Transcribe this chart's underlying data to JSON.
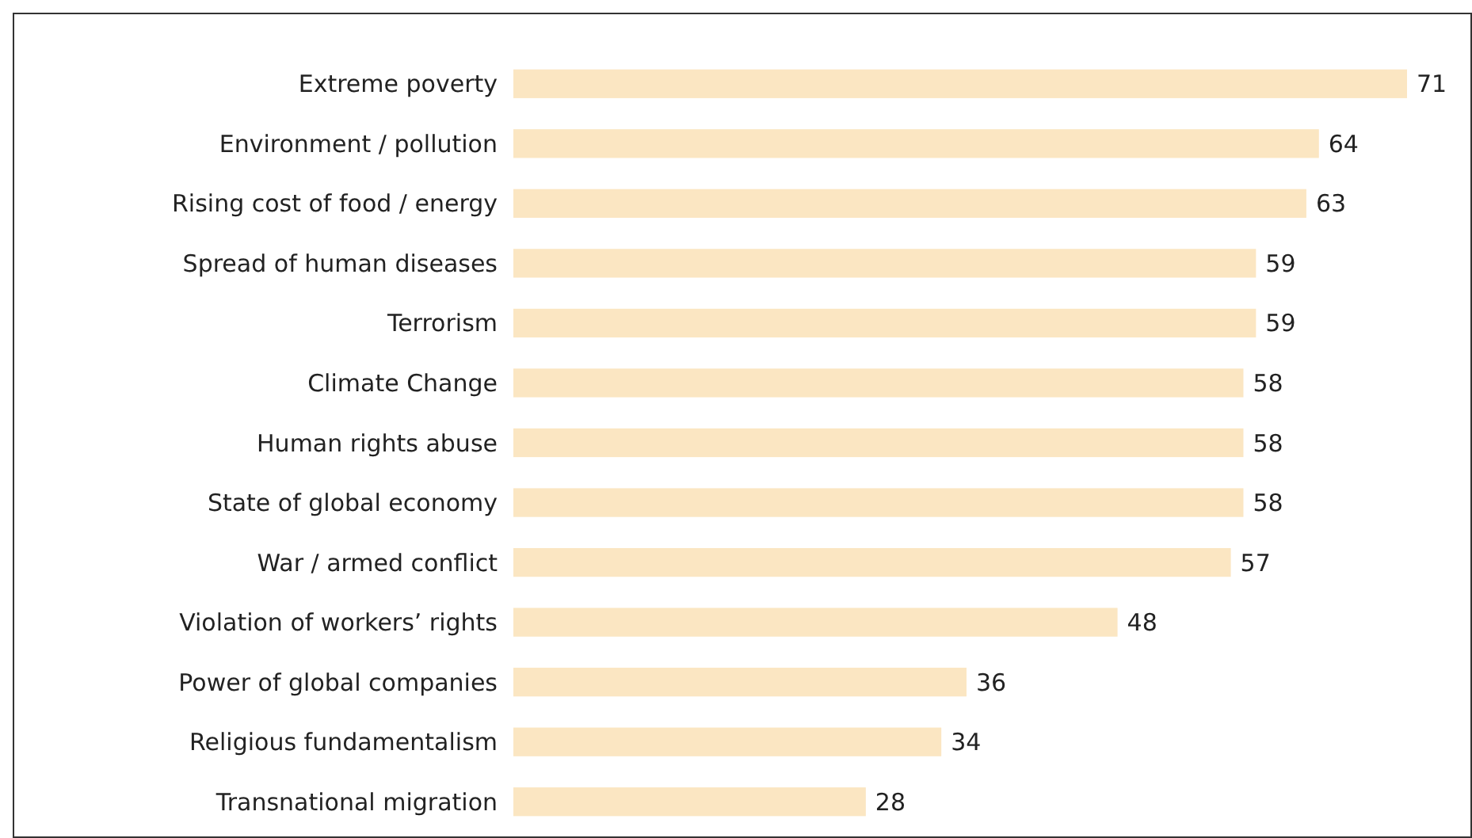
{
  "chart_data": {
    "type": "bar",
    "orientation": "horizontal",
    "categories": [
      "Extreme poverty",
      "Environment / pollution",
      "Rising cost of food / energy",
      "Spread of human diseases",
      "Terrorism",
      "Climate Change",
      "Human rights abuse",
      "State of global economy",
      "War / armed conflict",
      "Violation of workers’ rights",
      "Power of global companies",
      "Religious fundamentalism",
      "Transnational migration"
    ],
    "values": [
      71,
      64,
      63,
      59,
      59,
      58,
      58,
      58,
      57,
      48,
      36,
      34,
      28
    ],
    "color": "#fbe6c2",
    "data_labels": true
  }
}
